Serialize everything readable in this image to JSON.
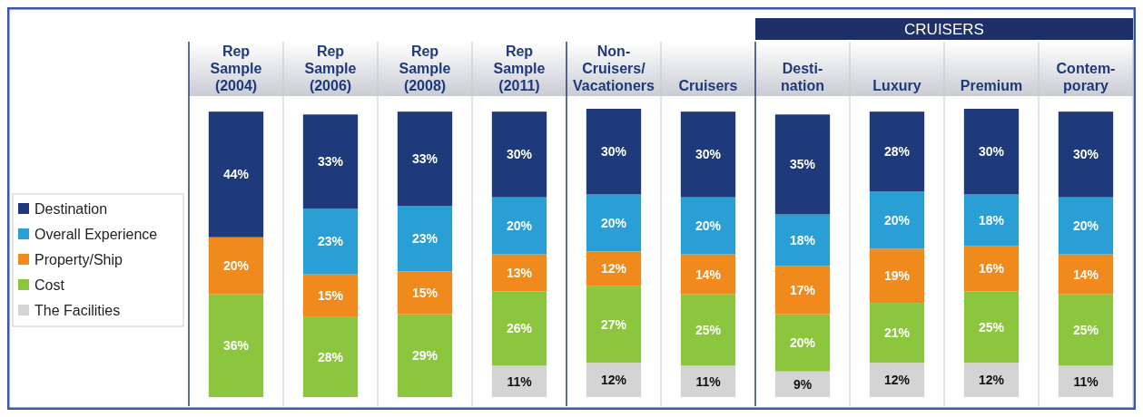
{
  "chart_data": {
    "type": "bar",
    "stacked": true,
    "legend": "left",
    "categories": [
      "Rep\nSample\n(2004)",
      "Rep\nSample\n(2006)",
      "Rep\nSample\n(2008)",
      "Rep\nSample\n(2011)",
      "Non-\nCruisers/\nVacationers",
      "Cruisers",
      "Desti-\nnation",
      "Luxury",
      "Premium",
      "Contem-\nporary"
    ],
    "annotations": [
      "CRUISERS"
    ],
    "series": [
      {
        "name": "The Facilities",
        "color": "#d4d4d4",
        "values": [
          null,
          null,
          null,
          11,
          12,
          11,
          9,
          12,
          12,
          11
        ],
        "value_labels": [
          null,
          null,
          null,
          "11%",
          "12%",
          "11%",
          "9%",
          "12%",
          "12%",
          "11%"
        ]
      },
      {
        "name": "Cost",
        "color": "#8cc63f",
        "values": [
          36,
          28,
          29,
          26,
          27,
          25,
          20,
          21,
          25,
          25
        ],
        "value_labels": [
          "36%",
          "28%",
          "29%",
          "26%",
          "27%",
          "25%",
          "20%",
          "21%",
          "25%",
          "25%"
        ]
      },
      {
        "name": "Property/Ship",
        "color": "#f08a1c",
        "values": [
          20,
          15,
          15,
          13,
          12,
          14,
          17,
          19,
          16,
          14
        ],
        "value_labels": [
          "20%",
          "15%",
          "15%",
          "13%",
          "12%",
          "14%",
          "17%",
          "19%",
          "16%",
          "14%"
        ]
      },
      {
        "name": "Overall Experience",
        "color": "#2a9fd6",
        "values": [
          null,
          23,
          23,
          20,
          20,
          20,
          18,
          20,
          18,
          20
        ],
        "value_labels": [
          null,
          "23%",
          "23%",
          "20%",
          "20%",
          "20%",
          "18%",
          "20%",
          "18%",
          "20%"
        ]
      },
      {
        "name": "Destination",
        "color": "#1f3a7a",
        "values": [
          44,
          33,
          33,
          30,
          30,
          30,
          35,
          28,
          30,
          30
        ],
        "value_labels": [
          "44%",
          "33%",
          "33%",
          "30%",
          "30%",
          "30%",
          "35%",
          "28%",
          "30%",
          "30%"
        ]
      }
    ]
  }
}
